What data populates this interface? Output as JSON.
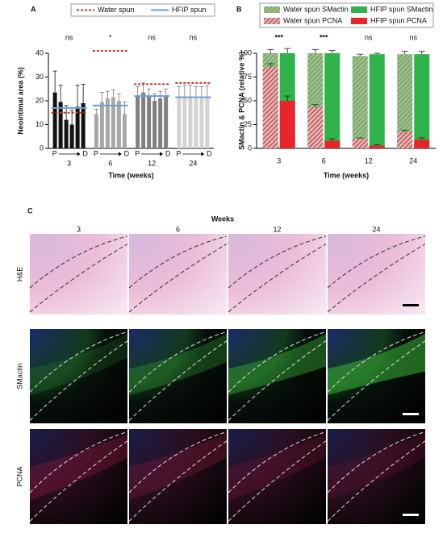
{
  "chart_data": [
    {
      "type": "grouped-bar",
      "label": "A",
      "ylabel": "Neointimal area (%)",
      "xlabel": "Time (weeks)",
      "ylim": [
        0,
        40
      ],
      "yticks": [
        0,
        10,
        20,
        30,
        40
      ],
      "position_labels": [
        "P",
        "D"
      ],
      "legend": [
        {
          "name": "Water spun",
          "color": "#c0392b",
          "style": "dashed"
        },
        {
          "name": "HFIP spun",
          "color": "#6d9fd3",
          "style": "solid"
        }
      ],
      "groups": [
        {
          "name": "3",
          "color": "#111111",
          "values": [
            23.5,
            19.5,
            12,
            10,
            17.5,
            19
          ],
          "errors": [
            9,
            7,
            6,
            6,
            9,
            8
          ],
          "water_mean": 15,
          "hfip_mean": 17,
          "significance": "ns"
        },
        {
          "name": "6",
          "color": "#a8a8a8",
          "values": [
            14.5,
            19.5,
            21,
            21.5,
            20,
            14.5
          ],
          "errors": [
            2,
            4,
            3,
            3,
            3,
            5
          ],
          "water_mean": 41,
          "hfip_mean": 18,
          "significance": "*"
        },
        {
          "name": "12",
          "color": "#808080",
          "values": [
            22,
            23.5,
            22,
            20,
            21,
            22
          ],
          "errors": [
            4,
            4,
            3,
            3,
            3,
            3
          ],
          "water_mean": 27,
          "hfip_mean": 22,
          "significance": "ns"
        },
        {
          "name": "24",
          "color": "#d2d2d2",
          "values": [
            21,
            21.5,
            21.5,
            21,
            21,
            21.5
          ],
          "errors": [
            5,
            5,
            5,
            5,
            5,
            5
          ],
          "water_mean": 27.5,
          "hfip_mean": 21.5,
          "significance": "ns"
        }
      ]
    },
    {
      "type": "overlay-bar",
      "label": "B",
      "ylabel": "SMactin & PCNA (relative %)",
      "xlabel": "Time (weeks)",
      "ylim": [
        0,
        100
      ],
      "yticks": [
        0,
        25,
        50,
        75,
        100
      ],
      "categories": [
        "3",
        "6",
        "12",
        "24"
      ],
      "significance": [
        "***",
        "***",
        "ns",
        "ns"
      ],
      "series": [
        {
          "name": "Water spun SMactin",
          "color": "#7fa86a",
          "hatch": true,
          "bar": 0,
          "values": [
            100,
            100,
            97,
            99
          ],
          "errors": [
            4,
            4,
            2,
            3
          ]
        },
        {
          "name": "HFIP spun SMactin",
          "color": "#2fb34a",
          "hatch": false,
          "bar": 1,
          "values": [
            100,
            100,
            99,
            99
          ],
          "errors": [
            5,
            3,
            1,
            3
          ]
        },
        {
          "name": "Water spun PCNA",
          "color": "#b0303a",
          "hatch": true,
          "bar": 0,
          "values": [
            85,
            43,
            10,
            17
          ],
          "errors": [
            4,
            3,
            1,
            2
          ]
        },
        {
          "name": "HFIP spun PCNA",
          "color": "#e8252b",
          "hatch": false,
          "bar": 1,
          "values": [
            50,
            8,
            3,
            9
          ],
          "errors": [
            5,
            2,
            1,
            2
          ]
        }
      ]
    }
  ],
  "panel_c": {
    "label": "C",
    "title": "Weeks",
    "columns": [
      "3",
      "6",
      "12",
      "24"
    ],
    "rows": [
      "H&E",
      "SMactin",
      "PCNA"
    ]
  }
}
